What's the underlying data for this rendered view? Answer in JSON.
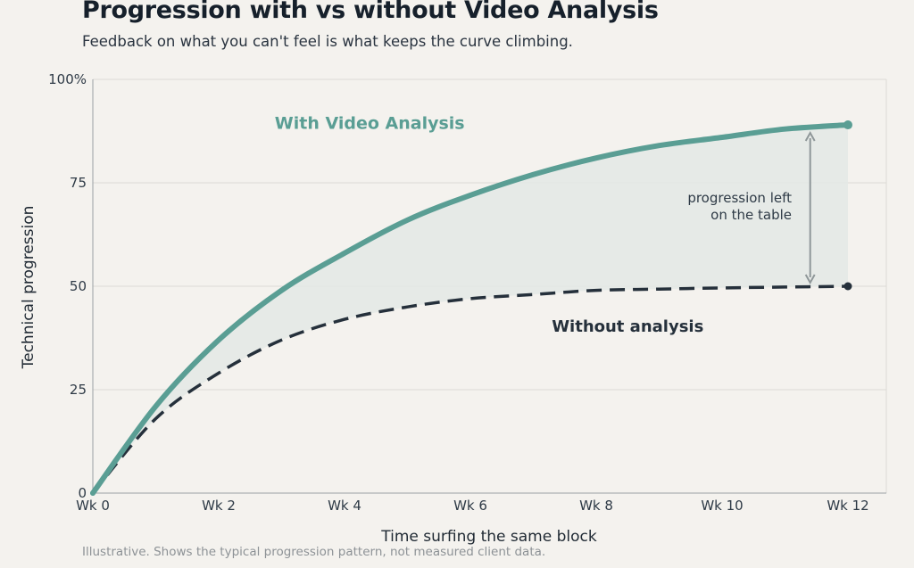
{
  "header": {
    "title": "Progression with vs without Video Analysis",
    "subtitle": "Feedback on what you can't feel is what keeps the curve climbing."
  },
  "footnote": "Illustrative. Shows the typical progression pattern, not measured client data.",
  "colors": {
    "with": "#5a9e94",
    "without": "#25303b",
    "fill": "#e3e9e5",
    "grid": "#dcdad5",
    "arrow": "#8f9799"
  },
  "chart_data": {
    "type": "line",
    "xlabel": "Time surfing the same block",
    "ylabel": "Technical progression",
    "xlim": [
      0,
      12
    ],
    "ylim": [
      0,
      100
    ],
    "x_ticks": [
      {
        "value": 0,
        "label": "Wk 0"
      },
      {
        "value": 2,
        "label": "Wk 2"
      },
      {
        "value": 4,
        "label": "Wk 4"
      },
      {
        "value": 6,
        "label": "Wk 6"
      },
      {
        "value": 8,
        "label": "Wk 8"
      },
      {
        "value": 10,
        "label": "Wk 10"
      },
      {
        "value": 12,
        "label": "Wk 12"
      }
    ],
    "y_ticks": [
      {
        "value": 0,
        "label": "0"
      },
      {
        "value": 25,
        "label": "25"
      },
      {
        "value": 50,
        "label": "50"
      },
      {
        "value": 75,
        "label": "75"
      },
      {
        "value": 100,
        "label": "100%"
      }
    ],
    "grid": true,
    "series": [
      {
        "name": "With Video Analysis",
        "style": "solid",
        "x": [
          0,
          1,
          2,
          3,
          4,
          5,
          6,
          7,
          8,
          9,
          10,
          11,
          12
        ],
        "values": [
          0,
          21,
          37,
          49,
          58,
          66,
          72,
          77,
          81,
          84,
          86,
          88,
          89
        ]
      },
      {
        "name": "Without analysis",
        "style": "dashed",
        "x": [
          0,
          1,
          2,
          3,
          4,
          5,
          6,
          7,
          8,
          9,
          10,
          11,
          12
        ],
        "values": [
          0,
          18,
          29,
          37,
          42,
          45,
          47,
          48,
          49,
          49.3,
          49.6,
          49.8,
          50
        ]
      }
    ],
    "annotations": [
      {
        "line1": "progression left",
        "line2": "on the table",
        "x": 11.4,
        "from": 87.5,
        "to": 50
      }
    ],
    "series_labels": [
      {
        "text": "With Video Analysis",
        "x": 4.4,
        "y": 88
      },
      {
        "text": "Without analysis",
        "x": 8.5,
        "y": 39
      }
    ]
  }
}
